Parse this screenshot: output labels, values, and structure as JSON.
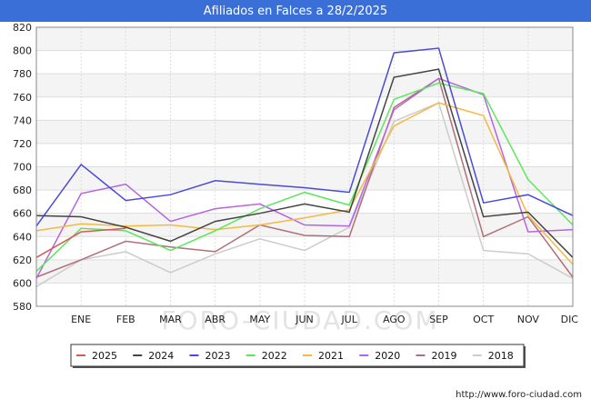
{
  "chart_data": {
    "type": "line",
    "title": "Afiliados en Falces a 28/2/2025",
    "xlabel": "",
    "ylabel": "",
    "categories": [
      "",
      "ENE",
      "FEB",
      "MAR",
      "ABR",
      "MAY",
      "JUN",
      "JUL",
      "AGO",
      "SEP",
      "OCT",
      "NOV",
      "DIC"
    ],
    "ylim": [
      580,
      820
    ],
    "yticks": [
      580,
      600,
      620,
      640,
      660,
      680,
      700,
      720,
      740,
      760,
      780,
      800,
      820
    ],
    "grid": true,
    "legend_position": "bottom",
    "watermark": "FORO-CIUDAD.COM",
    "series": [
      {
        "name": "2018",
        "color": "#cccccc",
        "values": [
          597,
          620,
          627,
          609,
          625,
          638,
          628,
          648,
          739,
          755,
          628,
          625,
          604
        ]
      },
      {
        "name": "2019",
        "color": "#b0707a",
        "values": [
          605,
          620,
          636,
          631,
          627,
          650,
          641,
          640,
          751,
          776,
          640,
          657,
          605
        ]
      },
      {
        "name": "2020",
        "color": "#b565e0",
        "values": [
          604,
          677,
          685,
          653,
          664,
          668,
          650,
          649,
          749,
          776,
          762,
          644,
          646
        ]
      },
      {
        "name": "2021",
        "color": "#f5b942",
        "values": [
          645,
          651,
          649,
          650,
          646,
          650,
          656,
          663,
          735,
          755,
          744,
          658,
          616
        ]
      },
      {
        "name": "2022",
        "color": "#5ce65c",
        "values": [
          610,
          647,
          645,
          628,
          645,
          664,
          678,
          667,
          758,
          772,
          763,
          689,
          650
        ]
      },
      {
        "name": "2023",
        "color": "#4b4bd8",
        "values": [
          649,
          702,
          671,
          676,
          688,
          685,
          682,
          678,
          798,
          802,
          669,
          676,
          658
        ]
      },
      {
        "name": "2024",
        "color": "#444444",
        "values": [
          658,
          657,
          648,
          636,
          653,
          660,
          668,
          661,
          777,
          784,
          657,
          661,
          622
        ]
      },
      {
        "name": "2025",
        "color": "#e05555",
        "values": [
          622,
          644,
          647,
          null,
          null,
          null,
          null,
          null,
          null,
          null,
          null,
          null,
          null
        ]
      }
    ],
    "legend_order": [
      "2025",
      "2024",
      "2023",
      "2022",
      "2021",
      "2020",
      "2019",
      "2018"
    ]
  },
  "footer": {
    "url": "http://www.foro-ciudad.com"
  }
}
